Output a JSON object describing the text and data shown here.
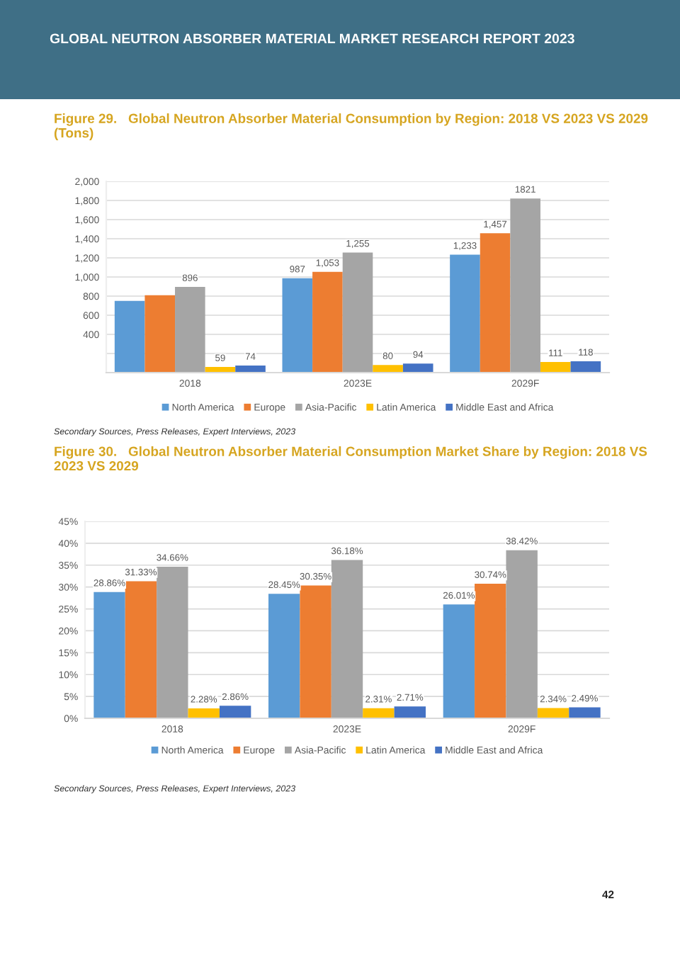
{
  "chart_data": [
    {
      "type": "bar",
      "title": "Figure 29.   Global Neutron Absorber Material Consumption by Region: 2018 VS 2023 VS 2029 (Tons)",
      "categories": [
        "2018",
        "2023E",
        "2029F"
      ],
      "series": [
        {
          "name": "North America",
          "color": "#5b9bd5",
          "values": [
            750,
            987,
            1233
          ],
          "value_labels": [
            null,
            "987",
            "1,233"
          ]
        },
        {
          "name": "Europe",
          "color": "#ed7d31",
          "values": [
            810,
            1053,
            1457
          ],
          "value_labels": [
            null,
            "1,053",
            "1,457"
          ]
        },
        {
          "name": "Asia-Pacific",
          "color": "#a5a5a5",
          "values": [
            896,
            1255,
            1821
          ],
          "value_labels": [
            "896",
            "1,255",
            "1821"
          ]
        },
        {
          "name": "Latin America",
          "color": "#ffc000",
          "values": [
            59,
            80,
            111
          ],
          "value_labels": [
            "59",
            "80",
            "111"
          ]
        },
        {
          "name": "Middle East and Africa",
          "color": "#4472c4",
          "values": [
            74,
            94,
            118
          ],
          "value_labels": [
            "74",
            "94",
            "118"
          ]
        }
      ],
      "ylim": [
        0,
        2000
      ],
      "yticks": [
        {
          "value": 0,
          "label": null
        },
        {
          "value": 200,
          "label": null
        },
        {
          "value": 400,
          "label": "400"
        },
        {
          "value": 600,
          "label": "600"
        },
        {
          "value": 800,
          "label": "800"
        },
        {
          "value": 1000,
          "label": "1,000"
        },
        {
          "value": 1200,
          "label": "1,200"
        },
        {
          "value": 1400,
          "label": "1,400"
        },
        {
          "value": 1600,
          "label": "1,600"
        },
        {
          "value": 1800,
          "label": "1,800"
        },
        {
          "value": 2000,
          "label": "2,000"
        }
      ],
      "grid": "y",
      "legend": "bottom",
      "annotations": [
        "GLOBAL NEUTRON ABSORBER MATERIAL MARKET RESEARCH REPORT 2023",
        "Secondary Sources, Press Releases, Expert Interviews, 2023"
      ]
    },
    {
      "type": "bar",
      "title": "Figure 30.   Global Neutron Absorber Material Consumption Market Share by Region: 2018 VS 2023 VS 2029",
      "categories": [
        "2018",
        "2023E",
        "2029F"
      ],
      "series": [
        {
          "name": "North America",
          "color": "#5b9bd5",
          "values": [
            28.86,
            28.45,
            26.01
          ],
          "value_labels": [
            "28.86%",
            "28.45%",
            "26.01%"
          ]
        },
        {
          "name": "Europe",
          "color": "#ed7d31",
          "values": [
            31.33,
            30.35,
            30.74
          ],
          "value_labels": [
            "31.33%",
            "30.35%",
            "30.74%"
          ]
        },
        {
          "name": "Asia-Pacific",
          "color": "#a5a5a5",
          "values": [
            34.66,
            36.18,
            38.42
          ],
          "value_labels": [
            "34.66%",
            "36.18%",
            "38.42%"
          ]
        },
        {
          "name": "Latin America",
          "color": "#ffc000",
          "values": [
            2.28,
            2.31,
            2.34
          ],
          "value_labels": [
            "2.28%",
            "2.31%",
            "2.34%"
          ]
        },
        {
          "name": "Middle East and Africa",
          "color": "#4472c4",
          "values": [
            2.86,
            2.71,
            2.49
          ],
          "value_labels": [
            "2.86%",
            "2.71%",
            "2.49%"
          ]
        }
      ],
      "ylim": [
        0,
        45
      ],
      "yticks": [
        {
          "value": 0,
          "label": "0%"
        },
        {
          "value": 5,
          "label": "5%"
        },
        {
          "value": 10,
          "label": "10%"
        },
        {
          "value": 15,
          "label": "15%"
        },
        {
          "value": 20,
          "label": "20%"
        },
        {
          "value": 25,
          "label": "25%"
        },
        {
          "value": 30,
          "label": "30%"
        },
        {
          "value": 35,
          "label": "35%"
        },
        {
          "value": 40,
          "label": "40%"
        },
        {
          "value": 45,
          "label": "45%"
        }
      ],
      "grid": "y",
      "legend": "bottom",
      "annotations": [
        "Secondary Sources, Press Releases, Expert Interviews, 2023",
        "42"
      ]
    }
  ]
}
